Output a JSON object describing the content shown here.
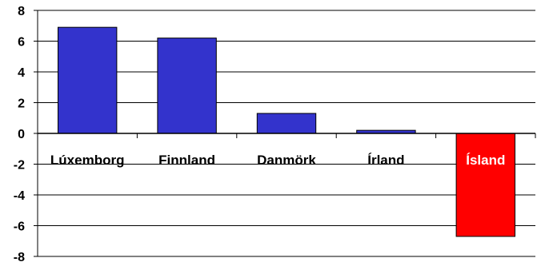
{
  "chart_data": {
    "type": "bar",
    "title": "",
    "xlabel": "",
    "ylabel": "",
    "categories": [
      "Lúxemborg",
      "Finnland",
      "Danmörk",
      "Írland",
      "Ísland"
    ],
    "values": [
      6.9,
      6.2,
      1.3,
      0.2,
      -6.7
    ],
    "ylim": [
      -8,
      8
    ],
    "yticks": [
      8,
      6,
      4,
      2,
      0,
      -2,
      -4,
      -6,
      -8
    ],
    "ytick_labels": [
      "8",
      "6",
      "4",
      "2",
      "0",
      "-2",
      "-4",
      "-6",
      "-8"
    ],
    "grid": true,
    "legend": false,
    "colors": {
      "bar_default": "#3333cc",
      "bar_highlight": "#ff0000",
      "bar_stroke": "#000000",
      "highlight_label": "#ffffff",
      "label": "#000000",
      "grid": "#000000"
    },
    "highlight_category": "Ísland"
  }
}
